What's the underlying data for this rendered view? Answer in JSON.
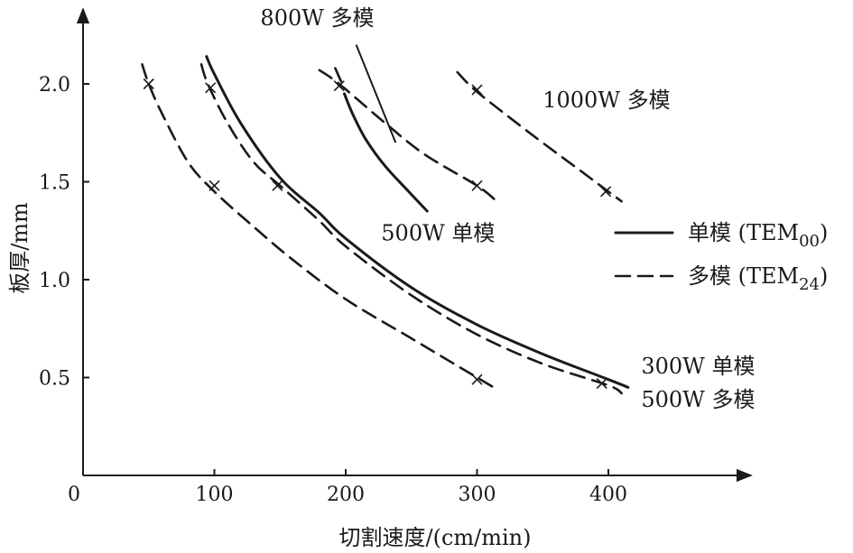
{
  "chart_data": {
    "type": "line",
    "xlabel": "切割速度/(cm/min)",
    "ylabel": "板厚/mm",
    "xlim": [
      0,
      510
    ],
    "ylim": [
      0,
      2.35
    ],
    "x_ticks": [
      0,
      100,
      200,
      300,
      400
    ],
    "x_tick_labels": [
      "0",
      "100",
      "200",
      "300",
      "400"
    ],
    "y_ticks": [
      0.5,
      1.0,
      1.5,
      2.0
    ],
    "y_tick_labels": [
      "0.5",
      "1.0",
      "1.5",
      "2.0"
    ],
    "grid": false,
    "legend_position": "right",
    "legend": [
      {
        "style": "solid",
        "label": "单模 (TEM",
        "sub": "00",
        "close": ")"
      },
      {
        "style": "dashed",
        "label": "多模 (TEM",
        "sub": "24",
        "close": ")"
      }
    ],
    "series": [
      {
        "name": "500W 多模",
        "style": "dashed",
        "label_pos": [
          425,
          0.35
        ],
        "points": [
          [
            45,
            2.1
          ],
          [
            50,
            2.0
          ],
          [
            60,
            1.85
          ],
          [
            80,
            1.6
          ],
          [
            100,
            1.45
          ],
          [
            130,
            1.27
          ],
          [
            160,
            1.1
          ],
          [
            200,
            0.9
          ],
          [
            250,
            0.7
          ],
          [
            300,
            0.5
          ],
          [
            315,
            0.44
          ]
        ],
        "markers": [
          [
            50,
            2.0
          ],
          [
            100,
            1.48
          ],
          [
            300,
            0.49
          ]
        ]
      },
      {
        "name": "500W 多模",
        "style": "dashed",
        "points": [
          [
            90,
            2.1
          ],
          [
            95,
            2.0
          ],
          [
            110,
            1.8
          ],
          [
            130,
            1.6
          ],
          [
            150,
            1.48
          ],
          [
            180,
            1.3
          ],
          [
            200,
            1.17
          ],
          [
            250,
            0.92
          ],
          [
            300,
            0.72
          ],
          [
            350,
            0.57
          ],
          [
            400,
            0.46
          ],
          [
            410,
            0.42
          ]
        ],
        "markers": [
          [
            97,
            1.98
          ],
          [
            148,
            1.48
          ],
          [
            395,
            0.47
          ]
        ]
      },
      {
        "name": "300W 单模",
        "style": "solid",
        "label_pos": [
          425,
          0.52
        ],
        "points": [
          [
            94,
            2.14
          ],
          [
            100,
            2.05
          ],
          [
            120,
            1.8
          ],
          [
            150,
            1.52
          ],
          [
            180,
            1.34
          ],
          [
            200,
            1.21
          ],
          [
            250,
            0.96
          ],
          [
            300,
            0.77
          ],
          [
            350,
            0.62
          ],
          [
            400,
            0.49
          ],
          [
            415,
            0.45
          ]
        ]
      },
      {
        "name": "500W 单模",
        "style": "solid",
        "label_pos": [
          227,
          1.2
        ],
        "points": [
          [
            199,
            1.95
          ],
          [
            205,
            1.85
          ],
          [
            215,
            1.72
          ],
          [
            230,
            1.58
          ],
          [
            248,
            1.45
          ],
          [
            262,
            1.35
          ]
        ]
      },
      {
        "name": "800W 多模",
        "style": "dashed",
        "label_pos": [
          135,
          2.3
        ],
        "pointer": [
          [
            208,
            2.2
          ],
          [
            238,
            1.7
          ]
        ],
        "points": [
          [
            180,
            2.07
          ],
          [
            195,
            2.0
          ],
          [
            230,
            1.8
          ],
          [
            260,
            1.64
          ],
          [
            300,
            1.48
          ],
          [
            315,
            1.4
          ]
        ],
        "extra": [
          [
            192,
            2.08
          ],
          [
            198,
            1.99
          ]
        ],
        "markers": [
          [
            195,
            1.99
          ],
          [
            300,
            1.48
          ]
        ]
      },
      {
        "name": "1000W 多模",
        "style": "dashed",
        "label_pos": [
          350,
          1.88
        ],
        "points": [
          [
            285,
            2.06
          ],
          [
            300,
            1.96
          ],
          [
            340,
            1.75
          ],
          [
            380,
            1.55
          ],
          [
            400,
            1.45
          ],
          [
            410,
            1.4
          ]
        ],
        "markers": [
          [
            300,
            1.97
          ],
          [
            398,
            1.45
          ]
        ]
      }
    ]
  }
}
